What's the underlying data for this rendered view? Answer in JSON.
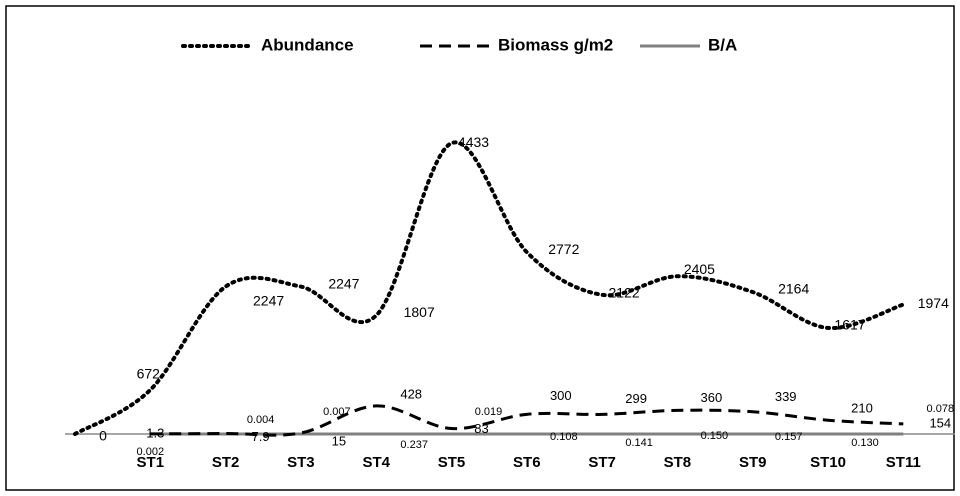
{
  "chart_data": {
    "type": "line",
    "categories": [
      null,
      "ST1",
      "ST2",
      "ST3",
      "ST4",
      "ST5",
      "ST6",
      "ST7",
      "ST8",
      "ST9",
      "ST10",
      "ST11"
    ],
    "series": [
      {
        "name": "Abundance",
        "color": "#000000",
        "dash": "dotted",
        "values": [
          0,
          672,
          2247,
          2247,
          1807,
          4433,
          2772,
          2122,
          2405,
          2164,
          1617,
          1974
        ],
        "value_labels": [
          "0",
          "672",
          "2247",
          "2247",
          "1807",
          "4433",
          "2772",
          "2122",
          "2405",
          "2164",
          "1617",
          "1974"
        ]
      },
      {
        "name": "Biomass g/m2",
        "color": "#000000",
        "dash": "dashed",
        "values": [
          null,
          1.3,
          7.9,
          15,
          428,
          83,
          300,
          299,
          360,
          339,
          210,
          154
        ],
        "value_labels": [
          null,
          "1.3",
          "7.9",
          "15",
          "428",
          "83",
          "300",
          "299",
          "360",
          "339",
          "210",
          "154"
        ]
      },
      {
        "name": "B/A",
        "color": "#808080",
        "dash": "solid",
        "values": [
          null,
          0.002,
          0.004,
          0.007,
          0.237,
          0.019,
          0.108,
          0.141,
          0.15,
          0.157,
          0.13,
          0.078
        ],
        "value_labels": [
          null,
          "0.002",
          "0.004",
          "0.007",
          "0.237",
          "0.019",
          "0.108",
          "0.141",
          "0.150",
          "0.157",
          "0.130",
          "0.078"
        ]
      }
    ],
    "ylim": [
      0,
      5000
    ],
    "legend": "top"
  }
}
